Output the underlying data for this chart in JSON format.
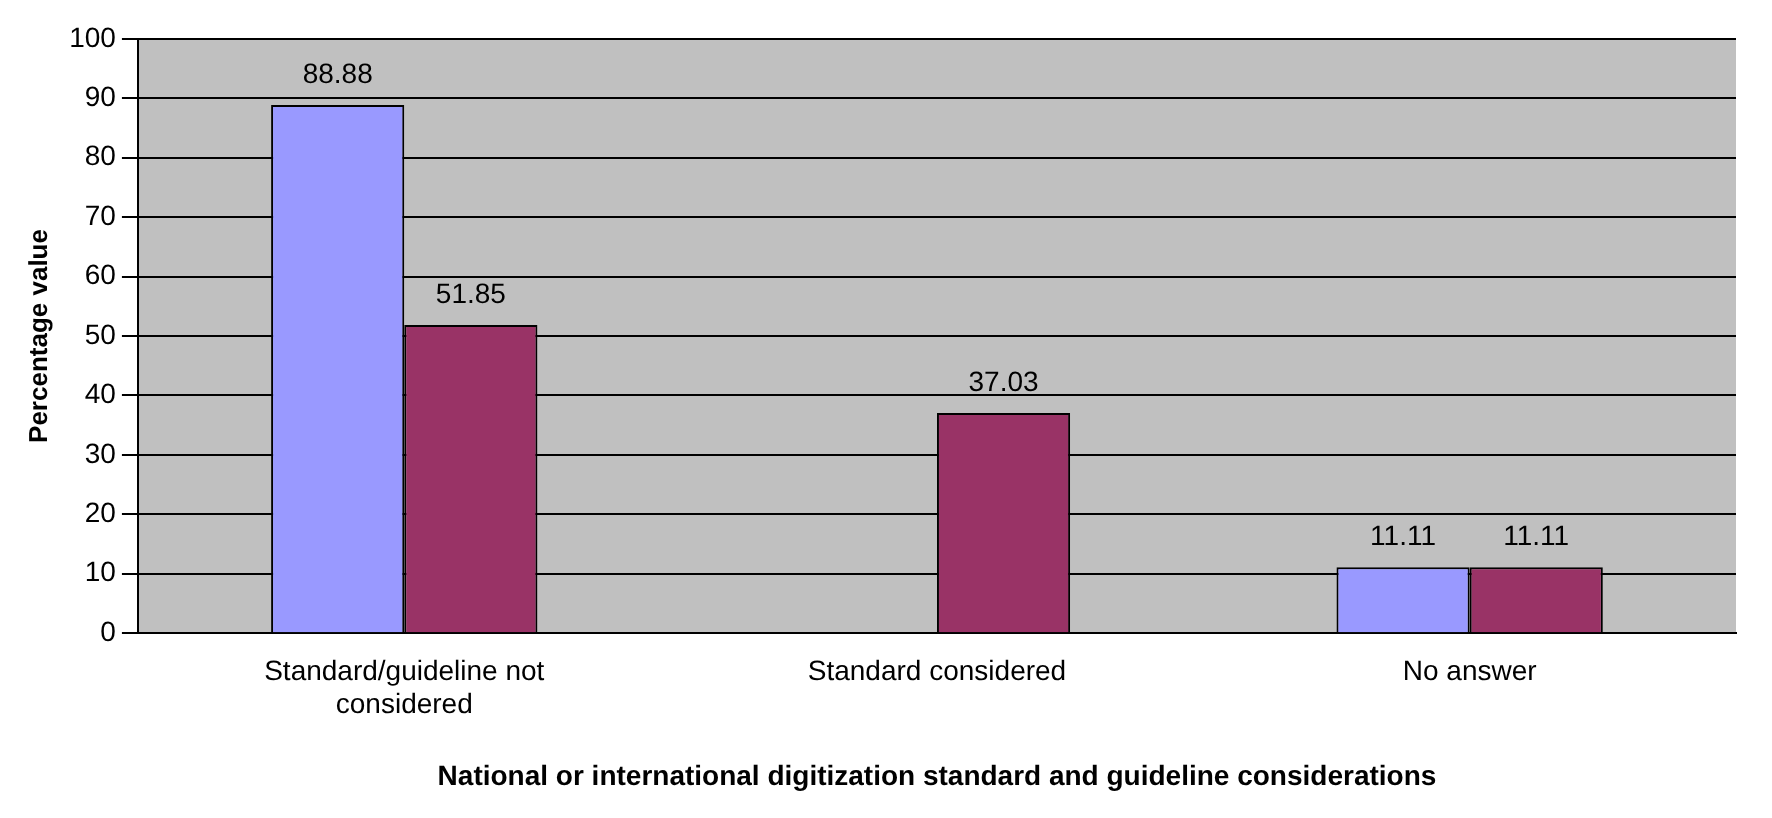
{
  "chart_data": {
    "type": "bar",
    "xlabel": "National or international digitization standard and guideline considerations",
    "ylabel": "Percentage value",
    "categories": [
      "Standard/guideline not considered",
      "Standard considered",
      "No answer"
    ],
    "series": [
      {
        "color": "#9999ff",
        "values": [
          88.88,
          null,
          11.11
        ]
      },
      {
        "color": "#993366",
        "values": [
          51.85,
          37.03,
          11.11
        ]
      }
    ],
    "ylim": [
      0,
      100
    ],
    "yticks": [
      0,
      10,
      20,
      30,
      40,
      50,
      60,
      70,
      80,
      90,
      100
    ],
    "grid": "y",
    "legend": false,
    "data_labels": true
  }
}
